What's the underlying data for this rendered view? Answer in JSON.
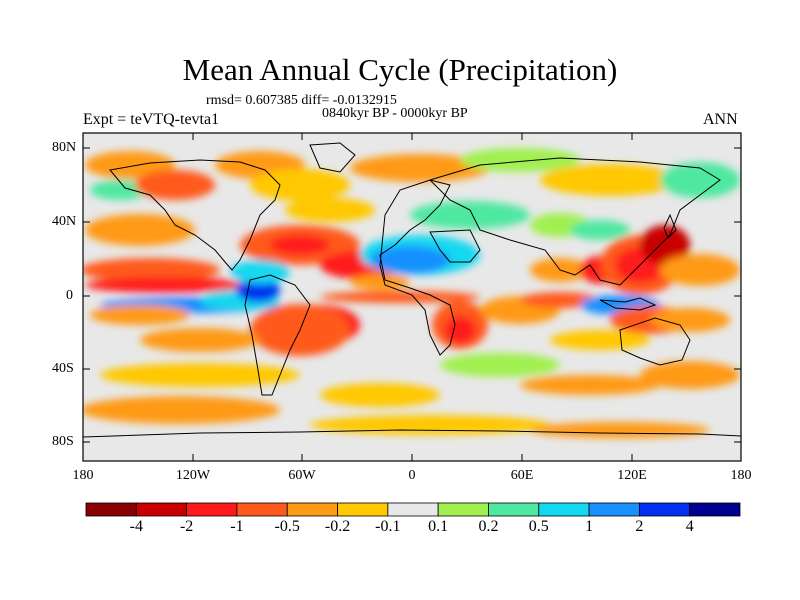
{
  "title": "Mean Annual Cycle (Precipitation)",
  "stats_line": "rmsd= 0.607385 diff= -0.0132915",
  "period": "0840kyr BP - 0000kyr BP",
  "experiment": "Expt = teVTQ-tevta1",
  "season": "ANN",
  "y_axis": {
    "ticks": [
      "80N",
      "40N",
      "0",
      "40S",
      "80S"
    ]
  },
  "x_axis": {
    "ticks": [
      "180",
      "120W",
      "60W",
      "0",
      "60E",
      "120E",
      "180"
    ]
  },
  "colorbar": {
    "boundary_labels": [
      "-4",
      "-2",
      "-1",
      "-0.5",
      "-0.2",
      "-0.1",
      "0.1",
      "0.2",
      "0.5",
      "1",
      "2",
      "4"
    ],
    "colors": [
      "#8b0000",
      "#c80000",
      "#ff1a1a",
      "#ff5a1e",
      "#ff9a14",
      "#ffc800",
      "#e8e8e8",
      "#a0f050",
      "#50e8a0",
      "#14d8f0",
      "#1890ff",
      "#0030f0",
      "#000090"
    ]
  },
  "colors": {
    "land_outline": "#000000",
    "ocean_neutral": "#e8e8e8"
  }
}
